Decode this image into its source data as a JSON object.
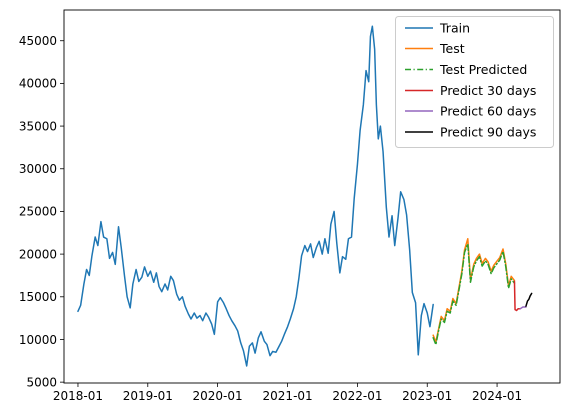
{
  "chart_data": {
    "type": "line",
    "title": "",
    "xlabel": "",
    "ylabel": "",
    "x_tick_labels": [
      "2018-01",
      "2019-01",
      "2020-01",
      "2021-01",
      "2022-01",
      "2023-01",
      "2024-01"
    ],
    "y_tick_labels": [
      "5000",
      "10000",
      "15000",
      "20000",
      "25000",
      "30000",
      "35000",
      "40000",
      "45000"
    ],
    "y_ticks": [
      5000,
      10000,
      15000,
      20000,
      25000,
      30000,
      35000,
      40000,
      45000
    ],
    "xlim": [
      "2017-10-20",
      "2024-11-25"
    ],
    "ylim": [
      4900,
      48600
    ],
    "grid": false,
    "legend_position": "top-right",
    "series": [
      {
        "name": "Train",
        "color": "#1f77b4",
        "dash": "solid",
        "points": [
          [
            "2018-01-01",
            13300
          ],
          [
            "2018-01-15",
            14000
          ],
          [
            "2018-02-01",
            16500
          ],
          [
            "2018-02-15",
            18200
          ],
          [
            "2018-03-01",
            17500
          ],
          [
            "2018-03-15",
            19800
          ],
          [
            "2018-04-01",
            22000
          ],
          [
            "2018-04-15",
            21000
          ],
          [
            "2018-05-01",
            23800
          ],
          [
            "2018-05-15",
            22000
          ],
          [
            "2018-06-01",
            21800
          ],
          [
            "2018-06-15",
            19500
          ],
          [
            "2018-07-01",
            20200
          ],
          [
            "2018-07-15",
            18800
          ],
          [
            "2018-08-01",
            23200
          ],
          [
            "2018-08-15",
            20800
          ],
          [
            "2018-09-01",
            17500
          ],
          [
            "2018-09-15",
            15000
          ],
          [
            "2018-10-01",
            13700
          ],
          [
            "2018-10-15",
            16500
          ],
          [
            "2018-11-01",
            18200
          ],
          [
            "2018-11-15",
            16800
          ],
          [
            "2018-12-01",
            17300
          ],
          [
            "2018-12-15",
            18500
          ],
          [
            "2019-01-01",
            17400
          ],
          [
            "2019-01-15",
            18000
          ],
          [
            "2019-02-01",
            16700
          ],
          [
            "2019-02-15",
            17800
          ],
          [
            "2019-03-01",
            16200
          ],
          [
            "2019-03-15",
            15600
          ],
          [
            "2019-04-01",
            16500
          ],
          [
            "2019-04-15",
            15800
          ],
          [
            "2019-05-01",
            17400
          ],
          [
            "2019-05-15",
            16900
          ],
          [
            "2019-06-01",
            15300
          ],
          [
            "2019-06-15",
            14600
          ],
          [
            "2019-07-01",
            15000
          ],
          [
            "2019-07-15",
            13900
          ],
          [
            "2019-08-01",
            13000
          ],
          [
            "2019-08-15",
            12400
          ],
          [
            "2019-09-01",
            13100
          ],
          [
            "2019-09-15",
            12500
          ],
          [
            "2019-10-01",
            12800
          ],
          [
            "2019-10-15",
            12200
          ],
          [
            "2019-11-01",
            13100
          ],
          [
            "2019-11-15",
            12600
          ],
          [
            "2019-12-01",
            11800
          ],
          [
            "2019-12-15",
            10600
          ],
          [
            "2020-01-01",
            14400
          ],
          [
            "2020-01-15",
            14900
          ],
          [
            "2020-02-01",
            14300
          ],
          [
            "2020-02-15",
            13600
          ],
          [
            "2020-03-01",
            12800
          ],
          [
            "2020-03-15",
            12200
          ],
          [
            "2020-04-01",
            11600
          ],
          [
            "2020-04-15",
            11000
          ],
          [
            "2020-05-01",
            9600
          ],
          [
            "2020-05-15",
            8700
          ],
          [
            "2020-06-01",
            6900
          ],
          [
            "2020-06-15",
            9200
          ],
          [
            "2020-07-01",
            9600
          ],
          [
            "2020-07-15",
            8400
          ],
          [
            "2020-08-01",
            10200
          ],
          [
            "2020-08-15",
            10900
          ],
          [
            "2020-09-01",
            9800
          ],
          [
            "2020-09-15",
            9400
          ],
          [
            "2020-10-01",
            8100
          ],
          [
            "2020-10-15",
            8600
          ],
          [
            "2020-11-01",
            8500
          ],
          [
            "2020-11-15",
            9100
          ],
          [
            "2020-12-01",
            9800
          ],
          [
            "2020-12-15",
            10600
          ],
          [
            "2021-01-01",
            11500
          ],
          [
            "2021-01-15",
            12400
          ],
          [
            "2021-02-01",
            13600
          ],
          [
            "2021-02-15",
            15000
          ],
          [
            "2021-03-01",
            17200
          ],
          [
            "2021-03-15",
            19800
          ],
          [
            "2021-04-01",
            21000
          ],
          [
            "2021-04-15",
            20300
          ],
          [
            "2021-05-01",
            21200
          ],
          [
            "2021-05-15",
            19600
          ],
          [
            "2021-06-01",
            20800
          ],
          [
            "2021-06-15",
            21500
          ],
          [
            "2021-07-01",
            20000
          ],
          [
            "2021-07-15",
            21800
          ],
          [
            "2021-08-01",
            20100
          ],
          [
            "2021-08-15",
            23500
          ],
          [
            "2021-09-01",
            25000
          ],
          [
            "2021-09-15",
            21300
          ],
          [
            "2021-10-01",
            17800
          ],
          [
            "2021-10-15",
            19700
          ],
          [
            "2021-11-01",
            19400
          ],
          [
            "2021-11-15",
            21800
          ],
          [
            "2021-12-01",
            22000
          ],
          [
            "2021-12-15",
            26500
          ],
          [
            "2022-01-01",
            30500
          ],
          [
            "2022-01-15",
            34500
          ],
          [
            "2022-02-01",
            37500
          ],
          [
            "2022-02-15",
            41500
          ],
          [
            "2022-03-01",
            40200
          ],
          [
            "2022-03-10",
            45500
          ],
          [
            "2022-03-20",
            46700
          ],
          [
            "2022-04-01",
            44000
          ],
          [
            "2022-04-10",
            37500
          ],
          [
            "2022-04-20",
            33500
          ],
          [
            "2022-05-01",
            35000
          ],
          [
            "2022-05-15",
            32000
          ],
          [
            "2022-06-01",
            25500
          ],
          [
            "2022-06-15",
            22000
          ],
          [
            "2022-07-01",
            24500
          ],
          [
            "2022-07-15",
            21000
          ],
          [
            "2022-08-01",
            24200
          ],
          [
            "2022-08-15",
            27300
          ],
          [
            "2022-09-01",
            26400
          ],
          [
            "2022-09-15",
            24600
          ],
          [
            "2022-10-01",
            20500
          ],
          [
            "2022-10-15",
            15500
          ],
          [
            "2022-11-01",
            14300
          ],
          [
            "2022-11-15",
            8200
          ],
          [
            "2022-12-01",
            12800
          ],
          [
            "2022-12-15",
            14200
          ],
          [
            "2023-01-01",
            13100
          ],
          [
            "2023-01-15",
            11500
          ],
          [
            "2023-02-01",
            14100
          ]
        ]
      },
      {
        "name": "Test",
        "color": "#ff7f0e",
        "dash": "solid",
        "points": [
          [
            "2023-02-01",
            10500
          ],
          [
            "2023-02-15",
            9700
          ],
          [
            "2023-03-01",
            11200
          ],
          [
            "2023-03-15",
            12700
          ],
          [
            "2023-04-01",
            12200
          ],
          [
            "2023-04-15",
            13600
          ],
          [
            "2023-05-01",
            13300
          ],
          [
            "2023-05-15",
            14800
          ],
          [
            "2023-06-01",
            14200
          ],
          [
            "2023-06-15",
            16000
          ],
          [
            "2023-07-01",
            18000
          ],
          [
            "2023-07-15",
            20500
          ],
          [
            "2023-08-01",
            21800
          ],
          [
            "2023-08-15",
            17000
          ],
          [
            "2023-09-01",
            18800
          ],
          [
            "2023-09-15",
            19500
          ],
          [
            "2023-10-01",
            20000
          ],
          [
            "2023-10-15",
            18900
          ],
          [
            "2023-11-01",
            19500
          ],
          [
            "2023-11-15",
            19100
          ],
          [
            "2023-12-01",
            18000
          ],
          [
            "2023-12-15",
            18700
          ],
          [
            "2024-01-01",
            19200
          ],
          [
            "2024-01-15",
            19600
          ],
          [
            "2024-02-01",
            20600
          ],
          [
            "2024-02-15",
            18900
          ],
          [
            "2024-03-01",
            16300
          ],
          [
            "2024-03-15",
            17400
          ],
          [
            "2024-04-01",
            16900
          ]
        ]
      },
      {
        "name": "Test Predicted",
        "color": "#2ca02c",
        "dash": "dashdot",
        "points": [
          [
            "2023-02-01",
            10200
          ],
          [
            "2023-02-15",
            9400
          ],
          [
            "2023-03-01",
            11000
          ],
          [
            "2023-03-15",
            12400
          ],
          [
            "2023-04-01",
            12000
          ],
          [
            "2023-04-15",
            13300
          ],
          [
            "2023-05-01",
            13100
          ],
          [
            "2023-05-15",
            14500
          ],
          [
            "2023-06-01",
            14000
          ],
          [
            "2023-06-15",
            15700
          ],
          [
            "2023-07-01",
            17700
          ],
          [
            "2023-07-15",
            20200
          ],
          [
            "2023-08-01",
            21200
          ],
          [
            "2023-08-15",
            16700
          ],
          [
            "2023-09-01",
            18500
          ],
          [
            "2023-09-15",
            19200
          ],
          [
            "2023-10-01",
            19700
          ],
          [
            "2023-10-15",
            18600
          ],
          [
            "2023-11-01",
            19200
          ],
          [
            "2023-11-15",
            18800
          ],
          [
            "2023-12-01",
            17700
          ],
          [
            "2023-12-15",
            18400
          ],
          [
            "2024-01-01",
            18900
          ],
          [
            "2024-01-15",
            19300
          ],
          [
            "2024-02-01",
            20300
          ],
          [
            "2024-02-15",
            18600
          ],
          [
            "2024-03-01",
            16000
          ],
          [
            "2024-03-15",
            17100
          ],
          [
            "2024-04-01",
            16600
          ]
        ]
      },
      {
        "name": "Predict 30 days",
        "color": "#d62728",
        "dash": "solid",
        "points": [
          [
            "2024-04-01",
            16800
          ],
          [
            "2024-04-04",
            13500
          ],
          [
            "2024-04-12",
            13400
          ],
          [
            "2024-04-20",
            13600
          ],
          [
            "2024-05-01",
            13600
          ]
        ]
      },
      {
        "name": "Predict 60 days",
        "color": "#9467bd",
        "dash": "solid",
        "points": [
          [
            "2024-05-01",
            13600
          ],
          [
            "2024-05-15",
            13800
          ],
          [
            "2024-05-31",
            13800
          ]
        ]
      },
      {
        "name": "Predict 90 days",
        "color": "#000000",
        "dash": "solid",
        "points": [
          [
            "2024-05-31",
            13900
          ],
          [
            "2024-06-08",
            14500
          ],
          [
            "2024-06-15",
            14700
          ],
          [
            "2024-06-22",
            15100
          ],
          [
            "2024-06-30",
            15400
          ]
        ]
      }
    ]
  }
}
